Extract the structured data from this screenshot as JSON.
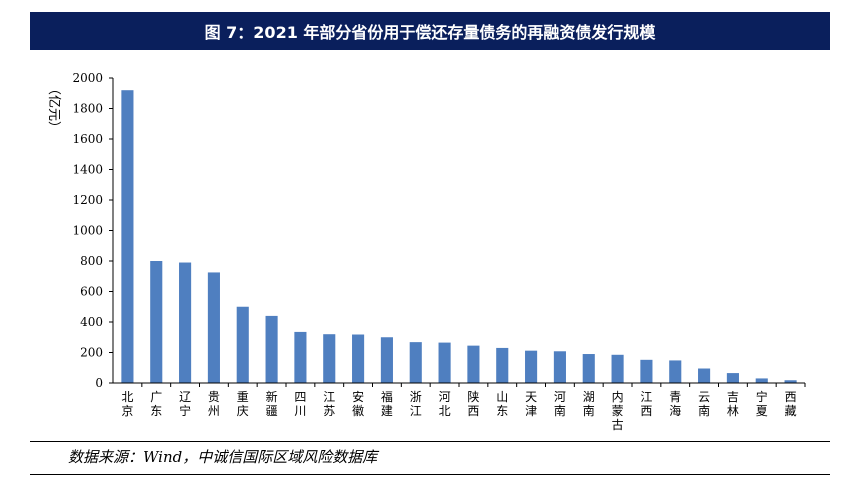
{
  "title": "图 7：2021 年部分省份用于偿还存量债务的再融资债发行规模",
  "source": "数据来源：Wind，中诚信国际区域风险数据库",
  "colors": {
    "bar": "#4f7fc0",
    "title_bg": "#0a1f5c"
  },
  "chart_data": {
    "type": "bar",
    "title": "图 7：2021 年部分省份用于偿还存量债务的再融资债发行规模",
    "ylabel": "（亿元）",
    "xlabel": "",
    "ylim": [
      0,
      2000
    ],
    "yticks": [
      0,
      200,
      400,
      600,
      800,
      1000,
      1200,
      1400,
      1600,
      1800,
      2000
    ],
    "categories": [
      "北京",
      "广东",
      "辽宁",
      "贵州",
      "重庆",
      "新疆",
      "四川",
      "江苏",
      "安徽",
      "福建",
      "浙江",
      "河北",
      "陕西",
      "山东",
      "天津",
      "河南",
      "湖南",
      "内蒙古",
      "江西",
      "青海",
      "云南",
      "吉林",
      "宁夏",
      "西藏"
    ],
    "values": [
      1920,
      800,
      790,
      725,
      500,
      440,
      335,
      320,
      318,
      300,
      268,
      265,
      245,
      230,
      212,
      208,
      190,
      185,
      152,
      148,
      95,
      65,
      30,
      18
    ],
    "grid": false
  }
}
